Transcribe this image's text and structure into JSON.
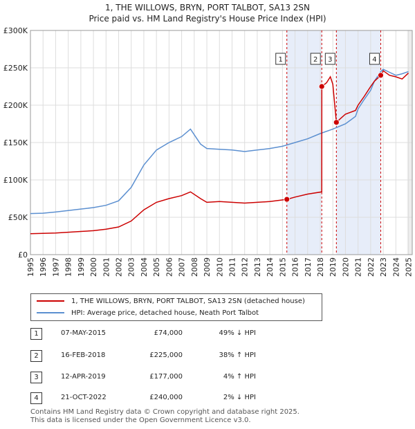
{
  "chart_data": {
    "type": "line",
    "title": "1, THE WILLOWS, BRYN, PORT TALBOT, SA13 2SN",
    "subtitle": "Price paid vs. HM Land Registry's House Price Index (HPI)",
    "xlim": [
      1995,
      2025.3
    ],
    "ylim": [
      0,
      300000
    ],
    "y_ticks": [
      0,
      50000,
      100000,
      150000,
      200000,
      250000,
      300000
    ],
    "y_tick_labels": [
      "£0",
      "£50K",
      "£100K",
      "£150K",
      "£200K",
      "£250K",
      "£300K"
    ],
    "x_ticks": [
      1995,
      1996,
      1997,
      1998,
      1999,
      2000,
      2001,
      2002,
      2003,
      2004,
      2005,
      2006,
      2007,
      2008,
      2009,
      2010,
      2011,
      2012,
      2013,
      2014,
      2015,
      2016,
      2017,
      2018,
      2019,
      2020,
      2021,
      2022,
      2023,
      2024,
      2025
    ],
    "grid": true,
    "series": [
      {
        "name": "1, THE WILLOWS, BRYN, PORT TALBOT, SA13 2SN (detached house)",
        "color": "#cc0000",
        "x": [
          1995,
          1996,
          1997,
          1998,
          1999,
          2000,
          2001,
          2002,
          2003,
          2004,
          2005,
          2006,
          2007,
          2007.7,
          2008.5,
          2009,
          2010,
          2011,
          2012,
          2013,
          2014,
          2015.35,
          2016,
          2017,
          2018.12,
          2018.125,
          2018.5,
          2018.8,
          2019.0,
          2019.28,
          2019.6,
          2020,
          2020.8,
          2021,
          2021.5,
          2022,
          2022.3,
          2022.8,
          2023,
          2023.5,
          2024,
          2024.5,
          2025
        ],
        "y": [
          28000,
          28500,
          29000,
          30000,
          31000,
          32000,
          34000,
          37000,
          45000,
          60000,
          70000,
          75000,
          79000,
          84000,
          75000,
          70000,
          71000,
          70000,
          69000,
          70000,
          71000,
          74000,
          77000,
          81000,
          84000,
          225000,
          230000,
          238000,
          228000,
          177000,
          182000,
          188000,
          193000,
          200000,
          212000,
          225000,
          232000,
          240000,
          246000,
          240000,
          238000,
          235000,
          243000
        ]
      },
      {
        "name": "HPI: Average price, detached house, Neath Port Talbot",
        "color": "#5b8fd0",
        "x": [
          1995,
          1996,
          1997,
          1998,
          1999,
          2000,
          2001,
          2002,
          2003,
          2004,
          2005,
          2006,
          2007,
          2007.7,
          2008.5,
          2009,
          2010,
          2011,
          2012,
          2013,
          2014,
          2015,
          2016,
          2017,
          2018,
          2019,
          2020,
          2020.8,
          2021,
          2021.5,
          2022,
          2022.3,
          2022.8,
          2023,
          2023.5,
          2024,
          2024.5,
          2025
        ],
        "y": [
          55000,
          55500,
          57000,
          59000,
          61000,
          63000,
          66000,
          72000,
          90000,
          120000,
          140000,
          150000,
          158000,
          168000,
          148000,
          142000,
          141000,
          140000,
          138000,
          140000,
          142000,
          145000,
          150000,
          155000,
          162000,
          168000,
          175000,
          185000,
          195000,
          208000,
          220000,
          232000,
          245000,
          248000,
          244000,
          240000,
          242000,
          245000
        ]
      }
    ],
    "transactions": [
      {
        "n": "1",
        "x": 2015.35,
        "y": 74000
      },
      {
        "n": "2",
        "x": 2018.12,
        "y": 225000
      },
      {
        "n": "3",
        "x": 2019.28,
        "y": 177000
      },
      {
        "n": "4",
        "x": 2022.8,
        "y": 240000
      }
    ]
  },
  "legend": {
    "red_label": "1, THE WILLOWS, BRYN, PORT TALBOT, SA13 2SN (detached house)",
    "blue_label": "HPI: Average price, detached house, Neath Port Talbot"
  },
  "table": [
    {
      "n": "1",
      "date": "07-MAY-2015",
      "price": "£74,000",
      "hpi": "49% ↓ HPI"
    },
    {
      "n": "2",
      "date": "16-FEB-2018",
      "price": "£225,000",
      "hpi": "38% ↑ HPI"
    },
    {
      "n": "3",
      "date": "12-APR-2019",
      "price": "£177,000",
      "hpi": "4% ↑ HPI"
    },
    {
      "n": "4",
      "date": "21-OCT-2022",
      "price": "£240,000",
      "hpi": "2% ↓ HPI"
    }
  ],
  "footer": {
    "line1": "Contains HM Land Registry data © Crown copyright and database right 2025.",
    "line2": "This data is licensed under the Open Government Licence v3.0."
  }
}
